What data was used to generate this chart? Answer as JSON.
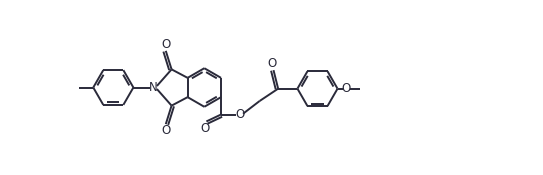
{
  "bg_color": "#ffffff",
  "line_color": "#2a2a3a",
  "line_width": 1.4,
  "fig_width": 5.43,
  "fig_height": 1.75,
  "dpi": 100,
  "xlim": [
    0,
    10.5
  ],
  "ylim": [
    0,
    4.5
  ]
}
